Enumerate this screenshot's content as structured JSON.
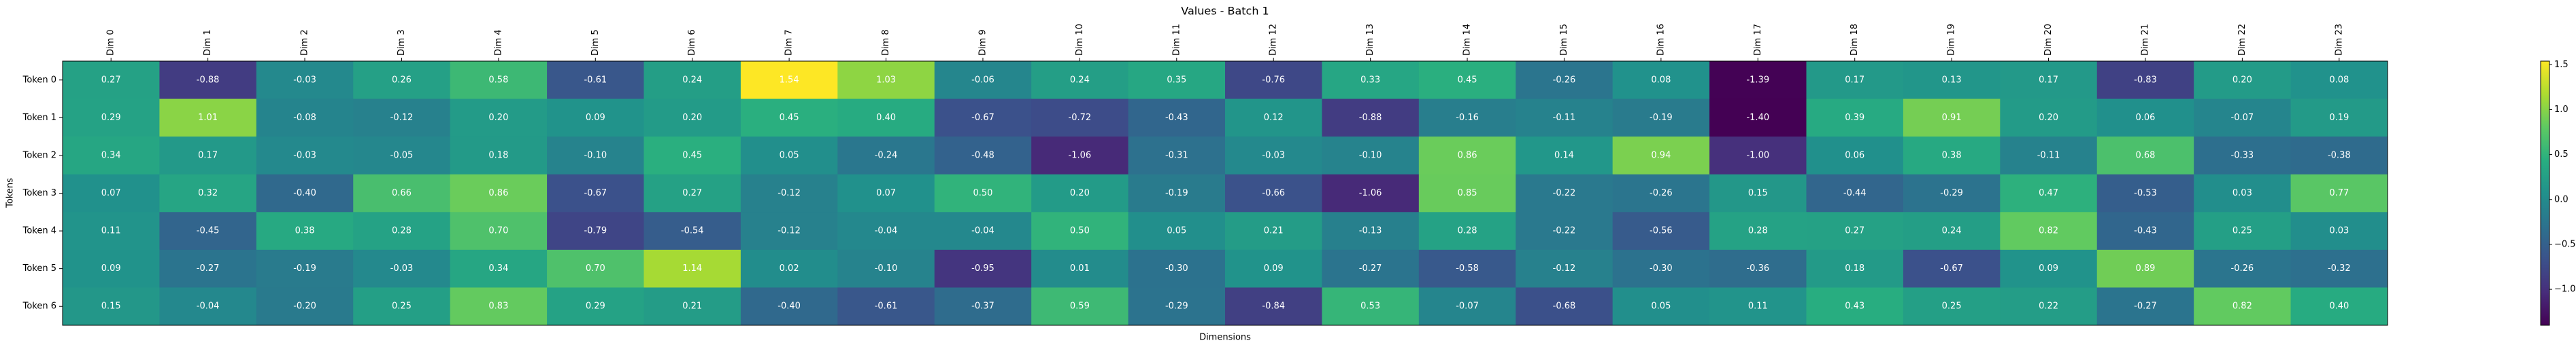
{
  "chart_data": {
    "type": "heatmap",
    "title": "Values - Batch 1",
    "xlabel": "Dimensions",
    "ylabel": "Tokens",
    "x_categories": [
      "Dim 0",
      "Dim 1",
      "Dim 2",
      "Dim 3",
      "Dim 4",
      "Dim 5",
      "Dim 6",
      "Dim 7",
      "Dim 8",
      "Dim 9",
      "Dim 10",
      "Dim 11",
      "Dim 12",
      "Dim 13",
      "Dim 14",
      "Dim 15",
      "Dim 16",
      "Dim 17",
      "Dim 18",
      "Dim 19",
      "Dim 20",
      "Dim 21",
      "Dim 22",
      "Dim 23"
    ],
    "y_categories": [
      "Token 0",
      "Token 1",
      "Token 2",
      "Token 3",
      "Token 4",
      "Token 5",
      "Token 6"
    ],
    "values": [
      [
        0.27,
        -0.88,
        -0.03,
        0.26,
        0.58,
        -0.61,
        0.24,
        1.54,
        1.03,
        -0.06,
        0.24,
        0.35,
        -0.76,
        0.33,
        0.45,
        -0.26,
        0.08,
        -1.39,
        0.17,
        0.13,
        0.17,
        -0.83,
        0.2,
        0.08
      ],
      [
        0.29,
        1.01,
        -0.08,
        -0.12,
        0.2,
        0.09,
        0.2,
        0.45,
        0.4,
        -0.67,
        -0.72,
        -0.43,
        0.12,
        -0.88,
        -0.16,
        -0.11,
        -0.19,
        -1.4,
        0.39,
        0.91,
        0.2,
        0.06,
        -0.07,
        0.19
      ],
      [
        0.34,
        0.17,
        -0.03,
        -0.05,
        0.18,
        -0.1,
        0.45,
        0.05,
        -0.24,
        -0.48,
        -1.06,
        -0.31,
        -0.03,
        -0.1,
        0.86,
        0.14,
        0.94,
        -1.0,
        0.06,
        0.38,
        -0.11,
        0.68,
        -0.33,
        -0.38
      ],
      [
        0.07,
        0.32,
        -0.4,
        0.66,
        0.86,
        -0.67,
        0.27,
        -0.12,
        0.07,
        0.5,
        0.2,
        -0.19,
        -0.66,
        -1.06,
        0.85,
        -0.22,
        -0.26,
        0.15,
        -0.44,
        -0.29,
        0.47,
        -0.53,
        0.03,
        0.77
      ],
      [
        0.11,
        -0.45,
        0.38,
        0.28,
        0.7,
        -0.79,
        -0.54,
        -0.12,
        -0.04,
        -0.04,
        0.5,
        0.05,
        0.21,
        -0.13,
        0.28,
        -0.22,
        -0.56,
        0.28,
        0.27,
        0.24,
        0.82,
        -0.43,
        0.25,
        0.03
      ],
      [
        0.09,
        -0.27,
        -0.19,
        -0.03,
        0.34,
        0.7,
        1.14,
        0.02,
        -0.1,
        -0.95,
        0.01,
        -0.3,
        0.09,
        -0.27,
        -0.58,
        -0.12,
        -0.3,
        -0.36,
        0.18,
        -0.67,
        0.09,
        0.89,
        -0.26,
        -0.32
      ],
      [
        0.15,
        -0.04,
        -0.2,
        0.25,
        0.83,
        0.29,
        0.21,
        -0.4,
        -0.61,
        -0.37,
        0.59,
        -0.29,
        -0.84,
        0.53,
        -0.07,
        -0.68,
        0.05,
        0.11,
        0.43,
        0.25,
        0.22,
        -0.27,
        0.82,
        0.4
      ]
    ],
    "value_labels": [
      [
        "0.27",
        "-0.88",
        "-0.03",
        "0.26",
        "0.58",
        "-0.61",
        "0.24",
        "1.54",
        "1.03",
        "-0.06",
        "0.24",
        "0.35",
        "-0.76",
        "0.33",
        "0.45",
        "-0.26",
        "0.08",
        "-1.39",
        "0.17",
        "0.13",
        "0.17",
        "-0.83",
        "0.20",
        "0.08"
      ],
      [
        "0.29",
        "1.01",
        "-0.08",
        "-0.12",
        "0.20",
        "0.09",
        "0.20",
        "0.45",
        "0.40",
        "-0.67",
        "-0.72",
        "-0.43",
        "0.12",
        "-0.88",
        "-0.16",
        "-0.11",
        "-0.19",
        "-1.40",
        "0.39",
        "0.91",
        "0.20",
        "0.06",
        "-0.07",
        "0.19"
      ],
      [
        "0.34",
        "0.17",
        "-0.03",
        "-0.05",
        "0.18",
        "-0.10",
        "0.45",
        "0.05",
        "-0.24",
        "-0.48",
        "-1.06",
        "-0.31",
        "-0.03",
        "-0.10",
        "0.86",
        "0.14",
        "0.94",
        "-1.00",
        "0.06",
        "0.38",
        "-0.11",
        "0.68",
        "-0.33",
        "-0.38"
      ],
      [
        "0.07",
        "0.32",
        "-0.40",
        "0.66",
        "0.86",
        "-0.67",
        "0.27",
        "-0.12",
        "0.07",
        "0.50",
        "0.20",
        "-0.19",
        "-0.66",
        "-1.06",
        "0.85",
        "-0.22",
        "-0.26",
        "0.15",
        "-0.44",
        "-0.29",
        "0.47",
        "-0.53",
        "0.03",
        "0.77"
      ],
      [
        "0.11",
        "-0.45",
        "0.38",
        "0.28",
        "0.70",
        "-0.79",
        "-0.54",
        "-0.12",
        "-0.04",
        "-0.04",
        "0.50",
        "0.05",
        "0.21",
        "-0.13",
        "0.28",
        "-0.22",
        "-0.56",
        "0.28",
        "0.27",
        "0.24",
        "0.82",
        "-0.43",
        "0.25",
        "0.03"
      ],
      [
        "0.09",
        "-0.27",
        "-0.19",
        "-0.03",
        "0.34",
        "0.70",
        "1.14",
        "0.02",
        "-0.10",
        "-0.95",
        "0.01",
        "-0.30",
        "0.09",
        "-0.27",
        "-0.58",
        "-0.12",
        "-0.30",
        "-0.36",
        "0.18",
        "-0.67",
        "0.09",
        "0.89",
        "-0.26",
        "-0.32"
      ],
      [
        "0.15",
        "-0.04",
        "-0.20",
        "0.25",
        "0.83",
        "0.29",
        "0.21",
        "-0.40",
        "-0.61",
        "-0.37",
        "0.59",
        "-0.29",
        "-0.84",
        "0.53",
        "-0.07",
        "-0.68",
        "0.05",
        "0.11",
        "0.43",
        "0.25",
        "0.22",
        "-0.27",
        "0.82",
        "0.40"
      ]
    ],
    "colormap": "viridis",
    "clim": [
      -1.4,
      1.54
    ],
    "colorbar_ticks": [
      {
        "value": -1.0,
        "label": "−1.0"
      },
      {
        "value": -0.5,
        "label": "−0.5"
      },
      {
        "value": 0.0,
        "label": "0.0"
      },
      {
        "value": 0.5,
        "label": "0.5"
      },
      {
        "value": 1.0,
        "label": "1.0"
      },
      {
        "value": 1.5,
        "label": "1.5"
      }
    ]
  }
}
